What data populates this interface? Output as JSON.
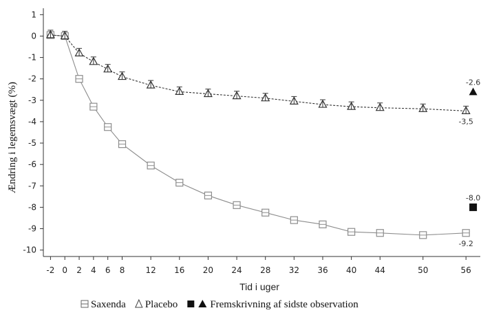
{
  "chart_data": {
    "type": "line",
    "ylabel": "Ændring i legemsvægt (%)",
    "xlabel": "Tid i uger",
    "xlim": [
      -3,
      58
    ],
    "ylim": [
      -10.3,
      1.3
    ],
    "xticks": [
      -2,
      0,
      2,
      4,
      6,
      8,
      12,
      16,
      20,
      24,
      28,
      32,
      36,
      40,
      44,
      50,
      56
    ],
    "yticks": [
      1,
      0,
      -1,
      -2,
      -3,
      -4,
      -5,
      -6,
      -7,
      -8,
      -9,
      -10
    ],
    "series": [
      {
        "name": "Saxenda",
        "marker": "square-open",
        "line": "solid",
        "color": "#8c8c8c",
        "x": [
          -2,
          0,
          2,
          4,
          6,
          8,
          12,
          16,
          20,
          24,
          28,
          32,
          36,
          40,
          44,
          50,
          56
        ],
        "y": [
          0.05,
          0.0,
          -2.0,
          -3.3,
          -4.25,
          -5.05,
          -6.05,
          -6.85,
          -7.45,
          -7.9,
          -8.25,
          -8.6,
          -8.8,
          -9.15,
          -9.2,
          -9.3,
          -9.2
        ]
      },
      {
        "name": "Placebo",
        "marker": "triangle-open",
        "line": "dashed",
        "color": "#333333",
        "x": [
          -2,
          0,
          2,
          4,
          6,
          8,
          12,
          16,
          20,
          24,
          28,
          32,
          36,
          40,
          44,
          50,
          56
        ],
        "y": [
          0.05,
          0.0,
          -0.8,
          -1.2,
          -1.55,
          -1.9,
          -2.3,
          -2.6,
          -2.7,
          -2.8,
          -2.9,
          -3.05,
          -3.2,
          -3.3,
          -3.35,
          -3.4,
          -3.5
        ]
      }
    ],
    "projections": [
      {
        "series": "Saxenda",
        "marker": "square-filled",
        "x": 57,
        "y": -8.0,
        "label": "-8.0"
      },
      {
        "series": "Placebo",
        "marker": "triangle-filled",
        "x": 57,
        "y": -2.6,
        "label": "-2.6"
      }
    ],
    "end_labels": [
      {
        "series": "Saxenda",
        "x": 56,
        "y": -9.2,
        "label": "-9.2"
      },
      {
        "series": "Placebo",
        "x": 56,
        "y": -3.5,
        "label": "-3,5"
      }
    ],
    "legend": {
      "placement": "bottom",
      "items": [
        {
          "marker": "square-open",
          "label": "Saxenda"
        },
        {
          "marker": "triangle-open",
          "label": "Placebo"
        },
        {
          "marker": "square-triangle-filled",
          "label": "Fremskrivning af sidste observation"
        }
      ]
    },
    "grid": false
  }
}
